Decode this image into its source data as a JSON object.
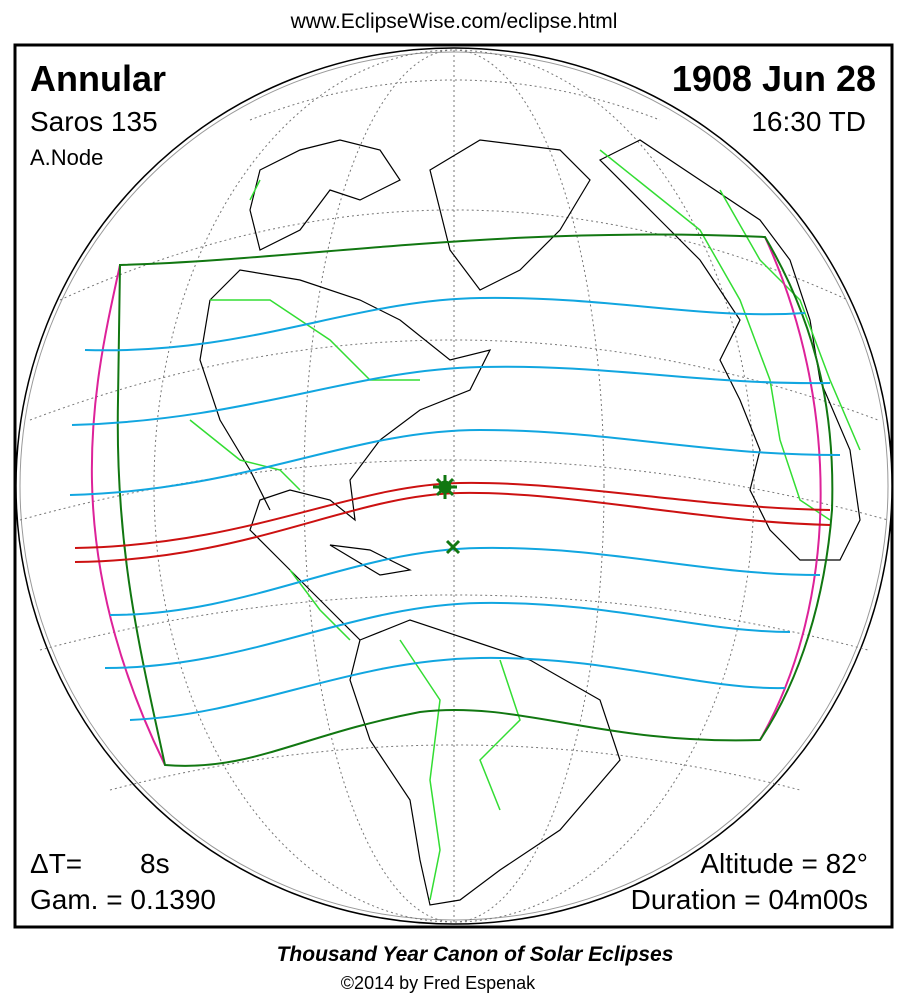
{
  "header": {
    "url": "www.EclipseWise.com/eclipse.html"
  },
  "eclipse": {
    "type": "Annular",
    "date": "1908 Jun 28",
    "saros": "Saros 135",
    "time": "16:30 TD",
    "node": "A.Node",
    "delta_t_label": "ΔT=",
    "delta_t": "8s",
    "gamma": "Gam. = 0.1390",
    "altitude": "Altitude = 82°",
    "duration": "Duration = 04m00s"
  },
  "footer": {
    "title": "Thousand Year Canon of Solar Eclipses",
    "copyright": "©2014 by Fred Espenak"
  }
}
